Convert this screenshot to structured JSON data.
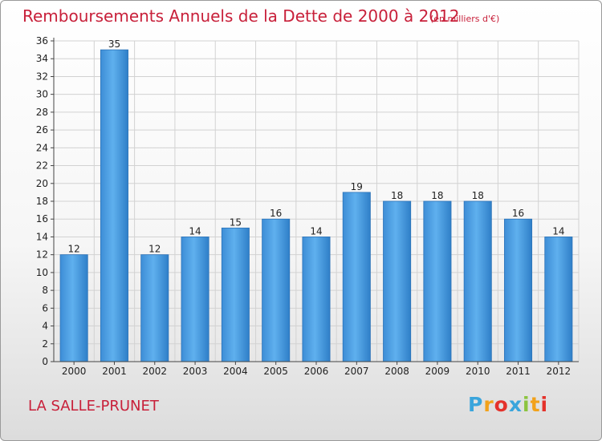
{
  "header": {
    "title": "Remboursements Annuels de la Dette de 2000 à 2012",
    "subtitle": "(en milliers d'€)"
  },
  "footer": {
    "commune": "LA SALLE-PRUNET",
    "logo_letters": [
      "P",
      "r",
      "o",
      "x",
      "i",
      "t",
      "i"
    ],
    "logo_colors": [
      "#3aa5dc",
      "#f2a21b",
      "#e4322b",
      "#3aa5dc",
      "#8cc43f",
      "#f2a21b",
      "#e4322b"
    ]
  },
  "chart_data": {
    "type": "bar",
    "categories": [
      "2000",
      "2001",
      "2002",
      "2003",
      "2004",
      "2005",
      "2006",
      "2007",
      "2008",
      "2009",
      "2010",
      "2011",
      "2012"
    ],
    "values": [
      12,
      35,
      12,
      14,
      15,
      16,
      14,
      19,
      18,
      18,
      18,
      16,
      14
    ],
    "ylim": [
      0,
      36
    ],
    "yticks": [
      0,
      2,
      4,
      6,
      8,
      10,
      12,
      14,
      16,
      18,
      20,
      22,
      24,
      26,
      28,
      30,
      32,
      34,
      36
    ],
    "grid": true,
    "bar_color": "#4a9de0"
  }
}
